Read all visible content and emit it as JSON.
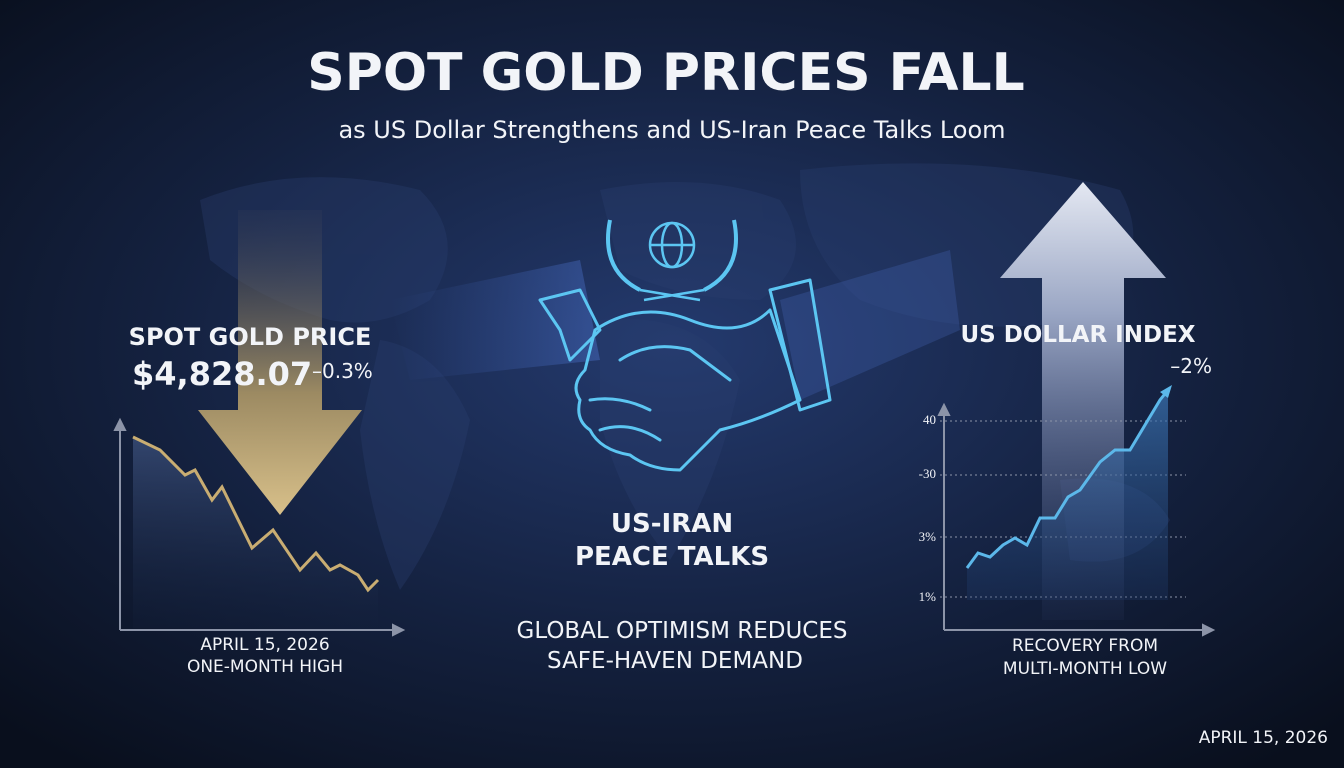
{
  "header": {
    "title": "SPOT GOLD PRICES FALL",
    "subtitle": "as US Dollar Strengthens and US-Iran Peace Talks Loom"
  },
  "gold_panel": {
    "label": "SPOT GOLD PRICE",
    "price": "$4,828.07",
    "change": "–0.3%",
    "caption": [
      "APRIL 15, 2026",
      "ONE-MONTH HIGH"
    ]
  },
  "center_panel": {
    "heading": [
      "US-IRAN",
      "PEACE TALKS"
    ],
    "caption": [
      "GLOBAL OPTIMISM REDUCES",
      "SAFE-HAVEN DEMAND"
    ]
  },
  "dollar_panel": {
    "label": "US DOLLAR INDEX",
    "change": "–2%",
    "axis_labels": [
      "40",
      "-30",
      "3%",
      "1%"
    ],
    "caption": [
      "RECOVERY FROM",
      "MULTI-MONTH LOW"
    ]
  },
  "footer": {
    "date": "APRIL 15, 2026"
  }
}
